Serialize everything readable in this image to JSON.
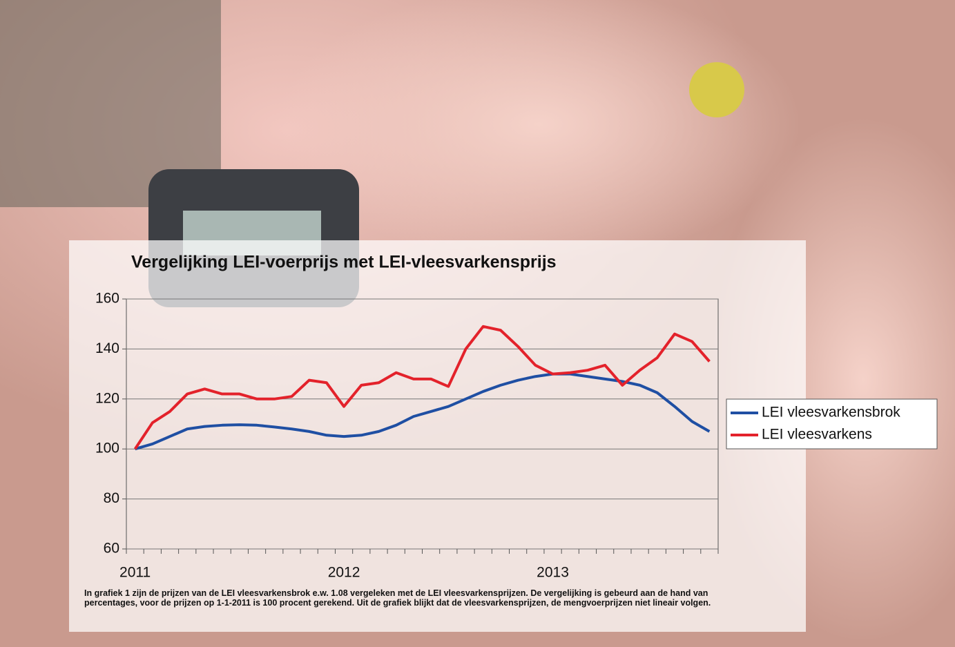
{
  "chart_data": {
    "type": "line",
    "title": "Vergelijking LEI-voerprijs met LEI-vleesvarkensprijs",
    "categories": [
      "2011",
      null,
      null,
      null,
      null,
      null,
      null,
      null,
      null,
      null,
      null,
      null,
      "2012",
      null,
      null,
      null,
      null,
      null,
      null,
      null,
      null,
      null,
      null,
      null,
      "2013",
      null,
      null,
      null,
      null,
      null,
      null,
      null,
      null,
      null
    ],
    "series": [
      {
        "name": "LEI vleesvarkensbrok",
        "color": "#1f4fa3",
        "values": [
          100,
          102,
          105,
          108,
          109,
          109.5,
          109.7,
          109.5,
          108.8,
          108,
          107,
          105.5,
          105,
          105.5,
          107,
          109.5,
          113,
          115,
          117,
          120,
          123,
          125.5,
          127.5,
          129,
          130,
          130,
          129,
          128,
          127,
          125.5,
          122.5,
          117,
          111,
          107
        ]
      },
      {
        "name": "LEI vleesvarkens",
        "color": "#e3222b",
        "values": [
          100,
          110.5,
          115,
          122,
          124,
          122,
          122,
          120,
          120,
          121,
          127.5,
          126.5,
          117,
          125.5,
          126.5,
          130.5,
          128,
          128,
          125,
          140,
          149,
          147.5,
          141,
          133.5,
          130,
          130.5,
          131.5,
          133.5,
          125.5,
          131.5,
          136.5,
          146,
          143,
          135
        ]
      }
    ],
    "ylim": [
      60,
      160
    ],
    "yticks": [
      60,
      80,
      100,
      120,
      140,
      160
    ],
    "grid": true,
    "legend": "right",
    "caption": "In grafiek 1 zijn de prijzen van de LEI vleesvarkensbrok e.w. 1.08 vergeleken met de LEI vleesvarkensprijzen. De vergelijking is gebeurd aan de hand van percentages, voor de prijzen op 1-1-2011 is 100 procent gerekend. Uit de grafiek blijkt dat de vleesvarkensprijzen, de mengvoerprijzen niet lineair volgen."
  }
}
